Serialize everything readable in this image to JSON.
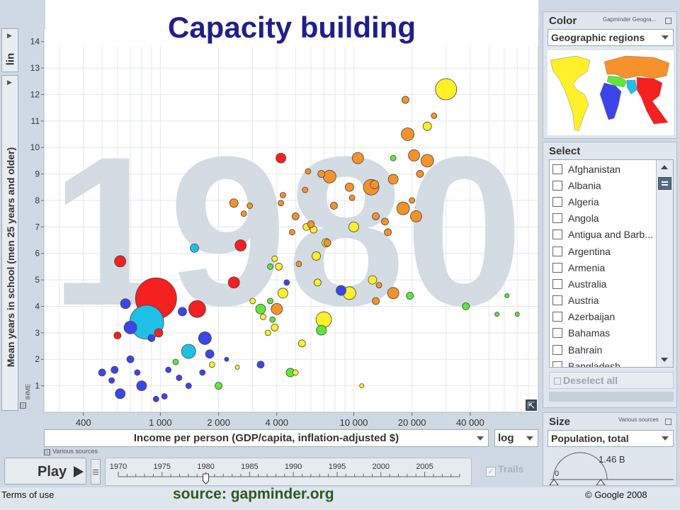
{
  "title": "Capacity building",
  "year_watermark": "1980",
  "source_banner": "source: gapminder.org",
  "footer": {
    "terms": "Terms of use",
    "copyright": "© Google 2008"
  },
  "y_axis": {
    "scale_button": "lin"
  },
  "x_axis": {
    "indicator": "Income per person (GDP/capita, inflation-adjusted $)",
    "scale": "log",
    "sources": "Various sources"
  },
  "ihme_label": "IHME",
  "color_panel": {
    "title": "Color",
    "provider": "Gapminder Geogra...",
    "selected": "Geographic regions"
  },
  "select_panel": {
    "title": "Select",
    "countries": [
      "Afghanistan",
      "Albania",
      "Algeria",
      "Angola",
      "Antigua and Barb...",
      "Argentina",
      "Armenia",
      "Australia",
      "Austria",
      "Azerbaijan",
      "Bahamas",
      "Bahrain",
      "Bangladesh"
    ],
    "deselect_all": "Deselect all"
  },
  "size_panel": {
    "title": "Size",
    "sources": "Various sources",
    "selected": "Population, total",
    "max_label": "1.46 B",
    "min_label": "0"
  },
  "playback": {
    "play_label": "Play",
    "trails_label": "Trails",
    "year_ticks": [
      "1970",
      "1975",
      "1980",
      "1985",
      "1990",
      "1995",
      "2000",
      "2005"
    ],
    "current_year": 1980,
    "range": [
      1970,
      2009
    ]
  },
  "colors": {
    "south_asia": "#1fc0e6",
    "east_asia": "#f52020",
    "americas": "#fff029",
    "africa": "#3c46e6",
    "europe_ca": "#f5922b",
    "middle_east": "#5fe63a"
  },
  "chart_data": {
    "type": "scatter",
    "title": "",
    "xlabel": "Income per person (GDP/capita, inflation-adjusted $)",
    "ylabel": "Mean years in school (men 25 years and older)",
    "x_scale": "log",
    "xlim": [
      250,
      90000
    ],
    "ylim": [
      0,
      14.5
    ],
    "x_ticks": [
      400,
      1000,
      2000,
      4000,
      10000,
      20000,
      40000
    ],
    "x_tick_labels": [
      "400",
      "1 000",
      "2 000",
      "4 000",
      "10 000",
      "20 000",
      "40 000"
    ],
    "y_ticks": [
      1,
      2,
      3,
      4,
      5,
      6,
      7,
      8,
      9,
      10,
      11,
      12,
      13,
      14
    ],
    "y_tick_labels": [
      "1",
      "2",
      "3",
      "4",
      "5",
      "6",
      "7",
      "8",
      "9",
      "10",
      "11",
      "12",
      "13",
      "14"
    ],
    "size_variable": "Population, total",
    "points": [
      {
        "x": 950,
        "y": 4.3,
        "size": 29,
        "color": "#f52020"
      },
      {
        "x": 850,
        "y": 3.4,
        "size": 24,
        "color": "#1fc0e6"
      },
      {
        "x": 620,
        "y": 5.7,
        "size": 8,
        "color": "#f52020"
      },
      {
        "x": 1550,
        "y": 3.9,
        "size": 12,
        "color": "#f52020"
      },
      {
        "x": 2600,
        "y": 6.3,
        "size": 8,
        "color": "#f52020"
      },
      {
        "x": 2400,
        "y": 4.9,
        "size": 8,
        "color": "#f52020"
      },
      {
        "x": 4200,
        "y": 9.6,
        "size": 7,
        "color": "#f52020"
      },
      {
        "x": 1400,
        "y": 2.3,
        "size": 10,
        "color": "#1fc0e6"
      },
      {
        "x": 1700,
        "y": 2.8,
        "size": 9,
        "color": "#3c46e6"
      },
      {
        "x": 1500,
        "y": 6.2,
        "size": 6,
        "color": "#1fc0e6"
      },
      {
        "x": 660,
        "y": 4.1,
        "size": 7,
        "color": "#3c46e6"
      },
      {
        "x": 700,
        "y": 3.2,
        "size": 9,
        "color": "#3c46e6"
      },
      {
        "x": 620,
        "y": 0.7,
        "size": 7,
        "color": "#3c46e6"
      },
      {
        "x": 500,
        "y": 1.5,
        "size": 5,
        "color": "#3c46e6"
      },
      {
        "x": 580,
        "y": 1.6,
        "size": 5,
        "color": "#3c46e6"
      },
      {
        "x": 980,
        "y": 3.0,
        "size": 6,
        "color": "#f52020"
      },
      {
        "x": 800,
        "y": 1.0,
        "size": 7,
        "color": "#3c46e6"
      },
      {
        "x": 1300,
        "y": 3.8,
        "size": 6,
        "color": "#3c46e6"
      },
      {
        "x": 600,
        "y": 2.9,
        "size": 5,
        "color": "#f52020"
      },
      {
        "x": 700,
        "y": 2.0,
        "size": 5,
        "color": "#3c46e6"
      },
      {
        "x": 900,
        "y": 2.8,
        "size": 5,
        "color": "#3c46e6"
      },
      {
        "x": 1100,
        "y": 1.6,
        "size": 4,
        "color": "#3c46e6"
      },
      {
        "x": 1250,
        "y": 1.3,
        "size": 4,
        "color": "#3c46e6"
      },
      {
        "x": 1400,
        "y": 1.0,
        "size": 4,
        "color": "#3c46e6"
      },
      {
        "x": 1800,
        "y": 2.2,
        "size": 6,
        "color": "#3c46e6"
      },
      {
        "x": 1050,
        "y": 0.6,
        "size": 4,
        "color": "#3c46e6"
      },
      {
        "x": 950,
        "y": 0.5,
        "size": 4,
        "color": "#3c46e6"
      },
      {
        "x": 760,
        "y": 1.5,
        "size": 4,
        "color": "#3c46e6"
      },
      {
        "x": 560,
        "y": 1.2,
        "size": 4,
        "color": "#3c46e6"
      },
      {
        "x": 1650,
        "y": 1.5,
        "size": 4,
        "color": "#3c46e6"
      },
      {
        "x": 3300,
        "y": 1.8,
        "size": 5,
        "color": "#3c46e6"
      },
      {
        "x": 4500,
        "y": 4.9,
        "size": 4,
        "color": "#3c46e6"
      },
      {
        "x": 8600,
        "y": 4.6,
        "size": 7,
        "color": "#3c46e6"
      },
      {
        "x": 2200,
        "y": 2.0,
        "size": 3,
        "color": "#3c46e6"
      },
      {
        "x": 3000,
        "y": 4.2,
        "size": 4,
        "color": "#fff029"
      },
      {
        "x": 7000,
        "y": 3.5,
        "size": 11,
        "color": "#fff029"
      },
      {
        "x": 9500,
        "y": 4.5,
        "size": 9,
        "color": "#fff029"
      },
      {
        "x": 10000,
        "y": 7.0,
        "size": 7,
        "color": "#fff029"
      },
      {
        "x": 4300,
        "y": 4.5,
        "size": 7,
        "color": "#fff029"
      },
      {
        "x": 3900,
        "y": 5.8,
        "size": 4,
        "color": "#fff029"
      },
      {
        "x": 6400,
        "y": 5.9,
        "size": 6,
        "color": "#fff029"
      },
      {
        "x": 5700,
        "y": 7.0,
        "size": 5,
        "color": "#fff029"
      },
      {
        "x": 3900,
        "y": 3.2,
        "size": 5,
        "color": "#fff029"
      },
      {
        "x": 5400,
        "y": 2.6,
        "size": 5,
        "color": "#fff029"
      },
      {
        "x": 1850,
        "y": 1.8,
        "size": 4,
        "color": "#fff029"
      },
      {
        "x": 12500,
        "y": 5.0,
        "size": 6,
        "color": "#fff029"
      },
      {
        "x": 6500,
        "y": 4.9,
        "size": 5,
        "color": "#fff029"
      },
      {
        "x": 24000,
        "y": 10.8,
        "size": 6,
        "color": "#fff029"
      },
      {
        "x": 30000,
        "y": 12.2,
        "size": 15,
        "color": "#fff029"
      },
      {
        "x": 3400,
        "y": 3.6,
        "size": 4,
        "color": "#fff029"
      },
      {
        "x": 4100,
        "y": 5.5,
        "size": 5,
        "color": "#fff029"
      },
      {
        "x": 7200,
        "y": 6.4,
        "size": 6,
        "color": "#fff029"
      },
      {
        "x": 6200,
        "y": 6.9,
        "size": 5,
        "color": "#fff029"
      },
      {
        "x": 3600,
        "y": 3.0,
        "size": 4,
        "color": "#fff029"
      },
      {
        "x": 2500,
        "y": 1.7,
        "size": 3,
        "color": "#fff029"
      },
      {
        "x": 5000,
        "y": 1.5,
        "size": 4,
        "color": "#fff029"
      },
      {
        "x": 11000,
        "y": 1.0,
        "size": 3,
        "color": "#fff029"
      },
      {
        "x": 3300,
        "y": 3.9,
        "size": 7,
        "color": "#5fe63a"
      },
      {
        "x": 6800,
        "y": 3.1,
        "size": 7,
        "color": "#5fe63a"
      },
      {
        "x": 4700,
        "y": 1.5,
        "size": 6,
        "color": "#5fe63a"
      },
      {
        "x": 3800,
        "y": 3.5,
        "size": 4,
        "color": "#5fe63a"
      },
      {
        "x": 3700,
        "y": 4.2,
        "size": 4,
        "color": "#5fe63a"
      },
      {
        "x": 2000,
        "y": 1.0,
        "size": 5,
        "color": "#5fe63a"
      },
      {
        "x": 1200,
        "y": 1.9,
        "size": 4,
        "color": "#5fe63a"
      },
      {
        "x": 19500,
        "y": 4.4,
        "size": 5,
        "color": "#5fe63a"
      },
      {
        "x": 38000,
        "y": 4.0,
        "size": 5,
        "color": "#5fe63a"
      },
      {
        "x": 55000,
        "y": 3.7,
        "size": 3,
        "color": "#5fe63a"
      },
      {
        "x": 70000,
        "y": 3.7,
        "size": 3,
        "color": "#5fe63a"
      },
      {
        "x": 62000,
        "y": 4.4,
        "size": 3,
        "color": "#5fe63a"
      },
      {
        "x": 16000,
        "y": 9.6,
        "size": 4,
        "color": "#5fe63a"
      },
      {
        "x": 3700,
        "y": 5.5,
        "size": 4,
        "color": "#5fe63a"
      },
      {
        "x": 10500,
        "y": 9.6,
        "size": 8,
        "color": "#f5922b"
      },
      {
        "x": 7500,
        "y": 8.9,
        "size": 9,
        "color": "#f5922b"
      },
      {
        "x": 12300,
        "y": 8.5,
        "size": 11,
        "color": "#f5922b"
      },
      {
        "x": 16000,
        "y": 8.8,
        "size": 7,
        "color": "#f5922b"
      },
      {
        "x": 19000,
        "y": 10.5,
        "size": 9,
        "color": "#f5922b"
      },
      {
        "x": 20500,
        "y": 9.7,
        "size": 8,
        "color": "#f5922b"
      },
      {
        "x": 22000,
        "y": 9.0,
        "size": 5,
        "color": "#f5922b"
      },
      {
        "x": 24000,
        "y": 9.5,
        "size": 9,
        "color": "#f5922b"
      },
      {
        "x": 18000,
        "y": 7.7,
        "size": 9,
        "color": "#f5922b"
      },
      {
        "x": 21000,
        "y": 7.4,
        "size": 8,
        "color": "#f5922b"
      },
      {
        "x": 13000,
        "y": 7.4,
        "size": 5,
        "color": "#f5922b"
      },
      {
        "x": 14500,
        "y": 7.2,
        "size": 5,
        "color": "#f5922b"
      },
      {
        "x": 15000,
        "y": 6.8,
        "size": 5,
        "color": "#f5922b"
      },
      {
        "x": 4000,
        "y": 3.9,
        "size": 8,
        "color": "#f5922b"
      },
      {
        "x": 16000,
        "y": 4.5,
        "size": 8,
        "color": "#f5922b"
      },
      {
        "x": 13500,
        "y": 4.8,
        "size": 4,
        "color": "#f5922b"
      },
      {
        "x": 4200,
        "y": 7.9,
        "size": 4,
        "color": "#f5922b"
      },
      {
        "x": 4300,
        "y": 8.2,
        "size": 4,
        "color": "#f5922b"
      },
      {
        "x": 2900,
        "y": 7.8,
        "size": 4,
        "color": "#f5922b"
      },
      {
        "x": 5600,
        "y": 8.4,
        "size": 4,
        "color": "#f5922b"
      },
      {
        "x": 6800,
        "y": 9.0,
        "size": 5,
        "color": "#f5922b"
      },
      {
        "x": 9500,
        "y": 8.5,
        "size": 6,
        "color": "#f5922b"
      },
      {
        "x": 5000,
        "y": 7.4,
        "size": 5,
        "color": "#f5922b"
      },
      {
        "x": 7900,
        "y": 7.8,
        "size": 5,
        "color": "#f5922b"
      },
      {
        "x": 18500,
        "y": 11.8,
        "size": 5,
        "color": "#f5922b"
      },
      {
        "x": 26000,
        "y": 11.2,
        "size": 4,
        "color": "#f5922b"
      },
      {
        "x": 2400,
        "y": 7.9,
        "size": 6,
        "color": "#f5922b"
      },
      {
        "x": 13000,
        "y": 4.2,
        "size": 5,
        "color": "#f5922b"
      },
      {
        "x": 6000,
        "y": 7.1,
        "size": 5,
        "color": "#f5922b"
      },
      {
        "x": 5800,
        "y": 9.1,
        "size": 4,
        "color": "#f5922b"
      },
      {
        "x": 20000,
        "y": 8.0,
        "size": 4,
        "color": "#f5922b"
      },
      {
        "x": 9800,
        "y": 8.1,
        "size": 4,
        "color": "#f5922b"
      },
      {
        "x": 7300,
        "y": 6.4,
        "size": 5,
        "color": "#f5922b"
      },
      {
        "x": 2700,
        "y": 7.5,
        "size": 4,
        "color": "#f5922b"
      },
      {
        "x": 5200,
        "y": 5.6,
        "size": 4,
        "color": "#f5922b"
      },
      {
        "x": 4800,
        "y": 6.8,
        "size": 4,
        "color": "#f5922b"
      },
      {
        "x": 12800,
        "y": 8.6,
        "size": 6,
        "color": "#f5922b"
      }
    ]
  }
}
